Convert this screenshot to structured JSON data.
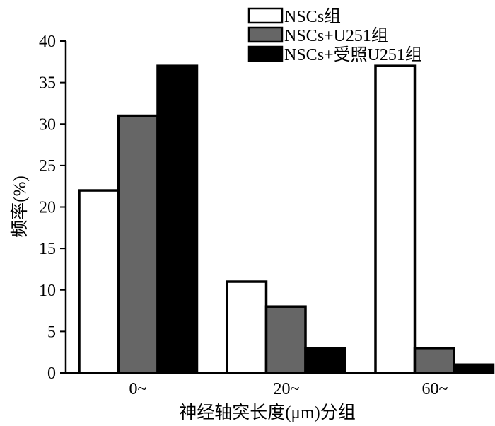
{
  "chart_data": {
    "type": "bar",
    "categories": [
      "0~",
      "20~",
      "60~"
    ],
    "series": [
      {
        "name": "NSCs组",
        "values": [
          22,
          11,
          37
        ],
        "color": "#ffffff"
      },
      {
        "name": "NSCs+U251组",
        "values": [
          31,
          8,
          3
        ],
        "color": "#666666"
      },
      {
        "name": "NSCs+受照U251组",
        "values": [
          37,
          3,
          1
        ],
        "color": "#000000"
      }
    ],
    "xlabel": "神经轴突长度(μm)分组",
    "ylabel": "频率(%)",
    "ylim": [
      0,
      40
    ],
    "yticks": [
      "0",
      "5",
      "10",
      "15",
      "20",
      "25",
      "30",
      "35",
      "40"
    ],
    "grid": false,
    "legend_position": "top-right"
  }
}
